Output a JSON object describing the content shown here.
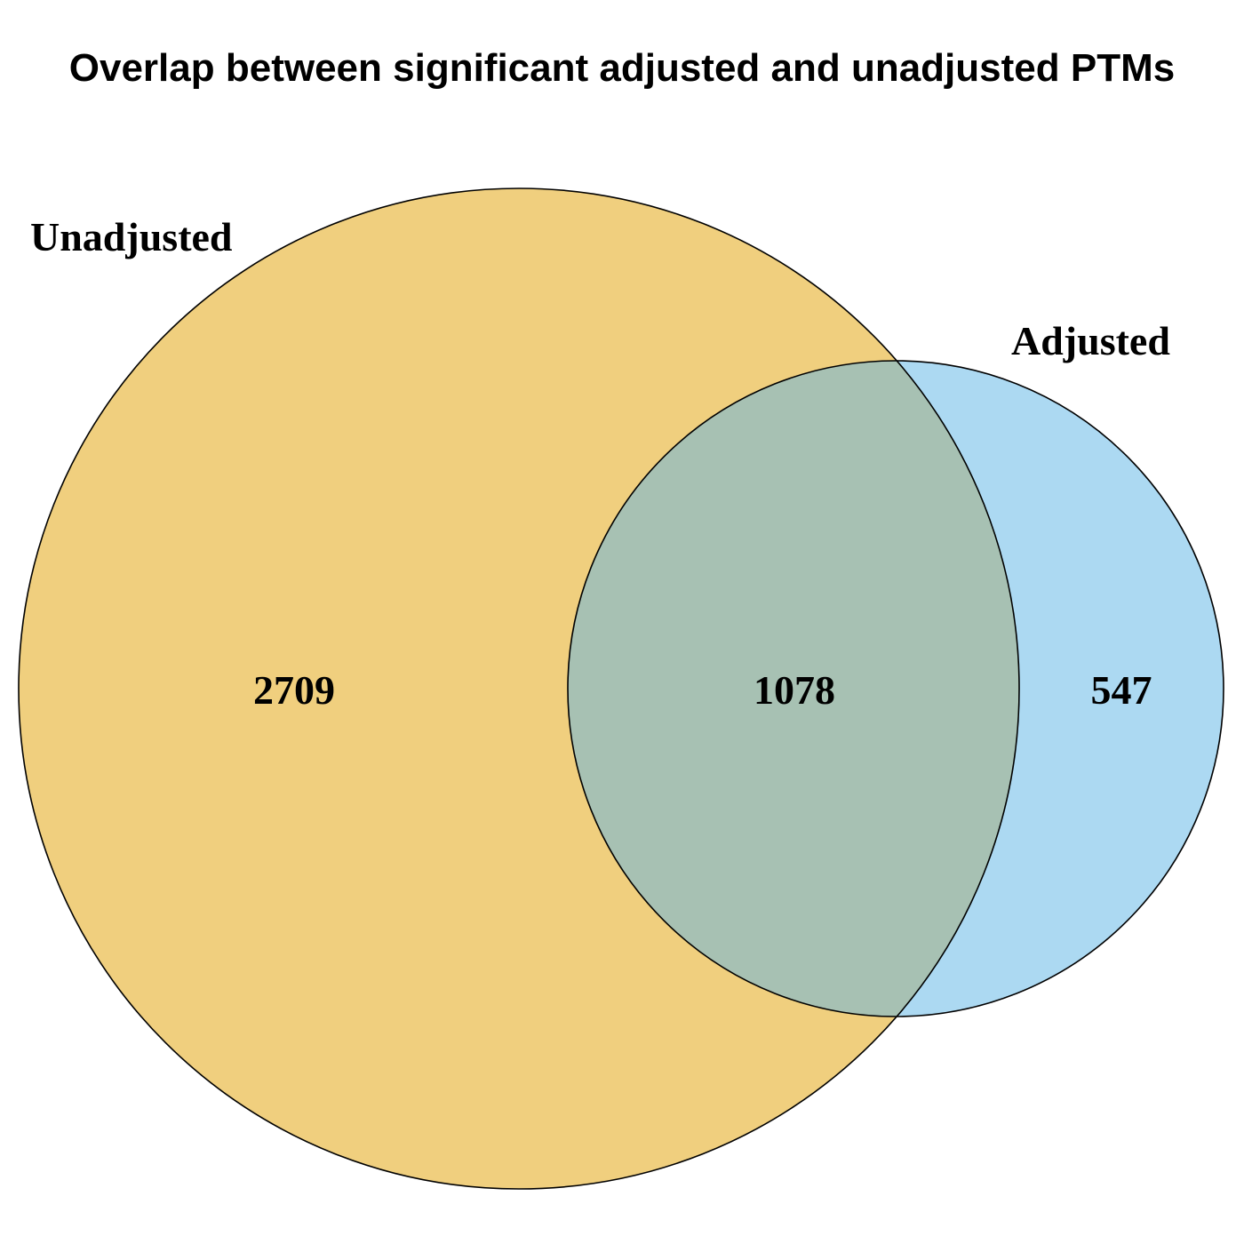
{
  "title": "Overlap between significant adjusted and unadjusted PTMs",
  "sets": [
    {
      "name": "Unadjusted",
      "color": "#F0CF7E"
    },
    {
      "name": "Adjusted",
      "color": "#ACD9F2"
    }
  ],
  "regions": {
    "unadjusted_only": "2709",
    "intersection": "1078",
    "adjusted_only": "547"
  },
  "intersection_color": "#A7C1B3",
  "outline_color": "#000000"
}
